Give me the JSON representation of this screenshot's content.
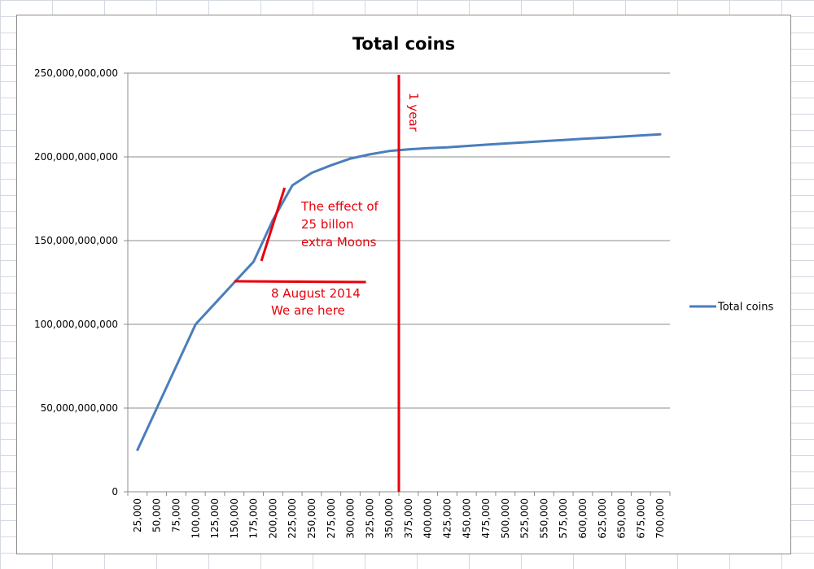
{
  "chart_data": {
    "type": "line",
    "title": "Total coins",
    "xlabel": "",
    "ylabel": "",
    "x_ticks": [
      "25,000",
      "50,000",
      "75,000",
      "100,000",
      "125,000",
      "150,000",
      "175,000",
      "200,000",
      "225,000",
      "250,000",
      "275,000",
      "300,000",
      "325,000",
      "350,000",
      "375,000",
      "400,000",
      "425,000",
      "450,000",
      "475,000",
      "500,000",
      "525,000",
      "550,000",
      "575,000",
      "600,000",
      "625,000",
      "650,000",
      "675,000",
      "700,000"
    ],
    "y_ticks": [
      "0",
      "50,000,000,000",
      "100,000,000,000",
      "150,000,000,000",
      "200,000,000,000",
      "250,000,000,000"
    ],
    "ylim": [
      0,
      250000000000
    ],
    "grid": "horizontal",
    "legend": "right",
    "series": [
      {
        "name": "Total coins",
        "color": "#4a7ebb",
        "x": [
          25000,
          50000,
          75000,
          100000,
          125000,
          150000,
          175000,
          200000,
          225000,
          250000,
          275000,
          300000,
          325000,
          350000,
          375000,
          400000,
          425000,
          450000,
          475000,
          500000,
          525000,
          550000,
          575000,
          600000,
          625000,
          650000,
          675000,
          700000
        ],
        "values": [
          25000000000,
          50000000000,
          75000000000,
          100000000000,
          112500000000,
          125000000000,
          137500000000,
          162500000000,
          183000000000,
          190500000000,
          195000000000,
          199000000000,
          201500000000,
          203500000000,
          204500000000,
          205200000000,
          205700000000,
          206500000000,
          207300000000,
          208000000000,
          208700000000,
          209400000000,
          210100000000,
          210800000000,
          211400000000,
          212100000000,
          212800000000,
          213500000000
        ]
      }
    ],
    "annotations": {
      "one_year": {
        "text": "1 year",
        "x": 362500
      },
      "effect": {
        "lines": [
          "The effect of",
          "25 billon",
          "extra Moons"
        ],
        "x_from": 185000,
        "x_to": 215000
      },
      "here": {
        "lines": [
          "8 August 2014",
          "We are here"
        ],
        "x_from": 150000,
        "x_to": 320000
      }
    },
    "annotation_color": "#e8000b"
  }
}
